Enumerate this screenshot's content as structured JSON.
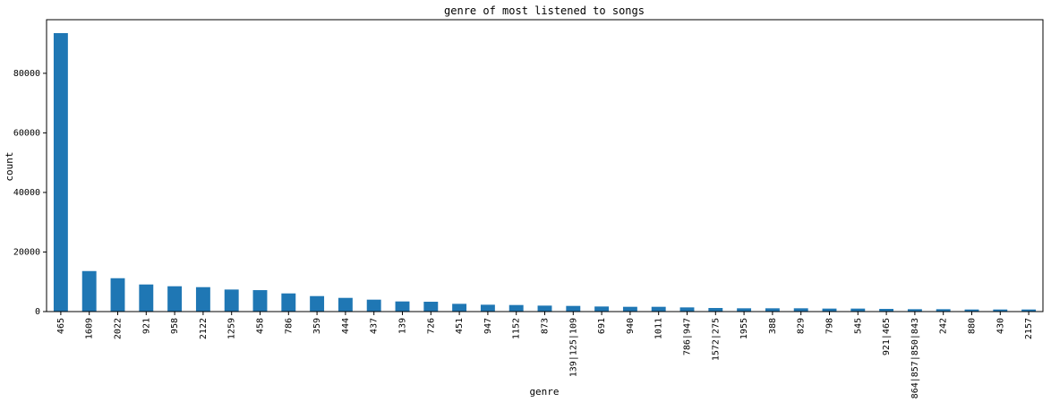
{
  "chart_data": {
    "type": "bar",
    "title": "genre of most listened to songs",
    "xlabel": "genre",
    "ylabel": "count",
    "categories": [
      "465",
      "1609",
      "2022",
      "921",
      "958",
      "2122",
      "1259",
      "458",
      "786",
      "359",
      "444",
      "437",
      "139",
      "726",
      "451",
      "947",
      "1152",
      "873",
      "139|125|109",
      "691",
      "940",
      "1011",
      "786|947",
      "1572|275",
      "1955",
      "388",
      "829",
      "798",
      "545",
      "921|465",
      "864|857|850|843",
      "242",
      "880",
      "430",
      "2157"
    ],
    "values": [
      93500,
      13600,
      11200,
      9100,
      8500,
      8200,
      7400,
      7200,
      6100,
      5200,
      4600,
      4000,
      3400,
      3300,
      2600,
      2300,
      2200,
      2000,
      1900,
      1700,
      1600,
      1600,
      1400,
      1200,
      1100,
      1100,
      1100,
      1000,
      1000,
      900,
      800,
      800,
      700,
      700,
      700
    ],
    "yticks": [
      0,
      20000,
      40000,
      60000,
      80000
    ],
    "ylim": [
      0,
      98000
    ],
    "color": "#1f77b4",
    "grid": false,
    "legend": false
  }
}
